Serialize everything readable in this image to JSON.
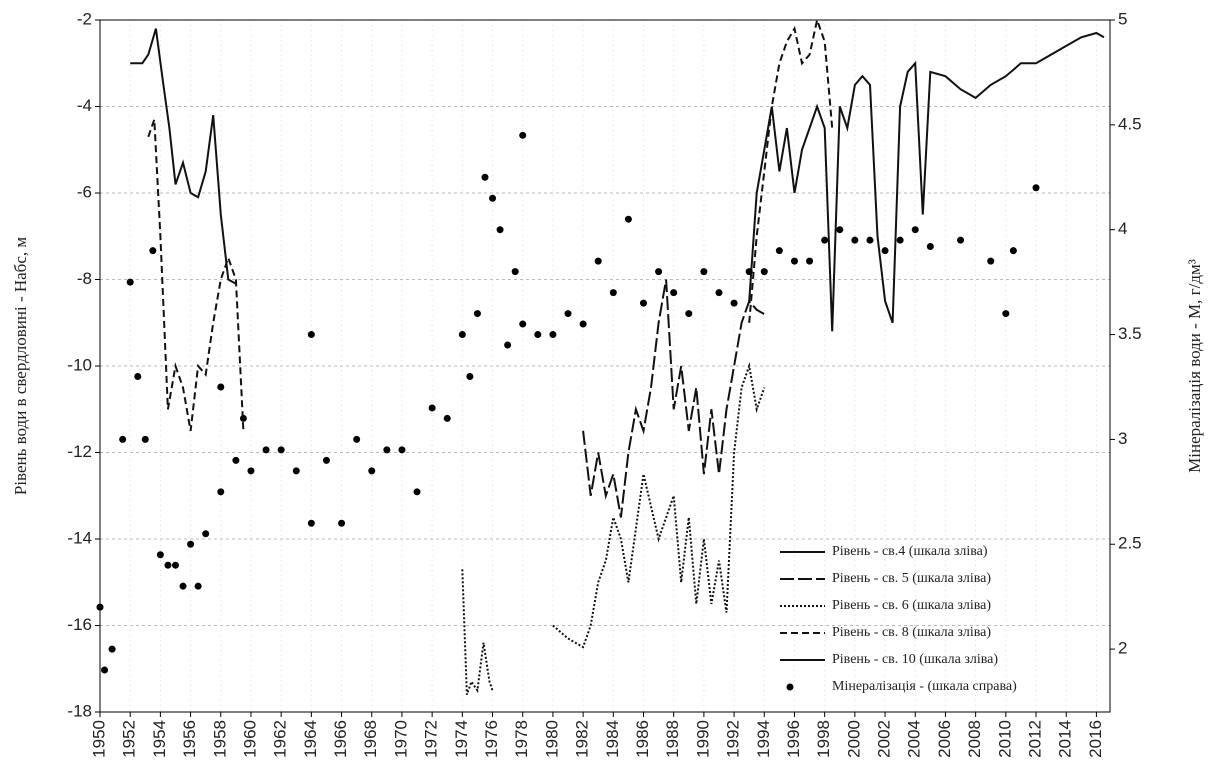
{
  "chart_data": {
    "type": "line",
    "y_label": "Рівень води в свердловині - Набс, м",
    "y2_label": "Мінералізація води - М, г/дм³",
    "xlim": [
      1950,
      2016.9
    ],
    "xticks": [
      1950,
      1952,
      1954,
      1956,
      1958,
      1960,
      1962,
      1964,
      1966,
      1968,
      1970,
      1972,
      1974,
      1976,
      1978,
      1980,
      1982,
      1984,
      1986,
      1988,
      1990,
      1992,
      1994,
      1996,
      1998,
      2000,
      2002,
      2004,
      2006,
      2008,
      2010,
      2012,
      2014,
      2016
    ],
    "ylim": [
      -18,
      -2
    ],
    "yticks": [
      -18,
      -16,
      -14,
      -12,
      -10,
      -8,
      -6,
      -4,
      -2
    ],
    "y2lim": [
      1.7,
      5.0
    ],
    "y2ticks": [
      2.0,
      2.5,
      3.0,
      3.5,
      4.0,
      4.5,
      5.0
    ],
    "grid": true,
    "legend": "lower-right",
    "series": [
      {
        "name": "Рівень - св.4 (шкала зліва)",
        "kind": "line",
        "style": "solid",
        "color": "#111111",
        "x": [
          1952,
          1952.8,
          1953.2,
          1953.7,
          1954.2,
          1954.6,
          1955,
          1955.5,
          1956,
          1956.5,
          1957,
          1957.5,
          1958,
          1958.5,
          1959
        ],
        "values": [
          -3,
          -3,
          -2.8,
          -2.2,
          -3.5,
          -4.5,
          -5.8,
          -5.3,
          -6,
          -6.1,
          -5.5,
          -4.2,
          -6.5,
          -8,
          -8.1
        ]
      },
      {
        "name": "Рівень - св. 5 (шкала зліва)",
        "kind": "line",
        "style": "long-dash",
        "color": "#111111",
        "x": [
          1982,
          1982.5,
          1983,
          1983.5,
          1984,
          1984.5,
          1985,
          1985.5,
          1986,
          1986.5,
          1987,
          1987.5,
          1988,
          1988.5,
          1989,
          1989.5,
          1990,
          1990.5,
          1991,
          1991.5,
          1992,
          1992.5,
          1993,
          1993.5,
          1994
        ],
        "values": [
          -11.5,
          -13,
          -12,
          -13,
          -12.5,
          -13.5,
          -12,
          -11,
          -11.5,
          -10.5,
          -9,
          -8,
          -11,
          -10,
          -11.5,
          -10.5,
          -12.5,
          -11,
          -12.5,
          -11,
          -10,
          -9,
          -8.5,
          -8.7,
          -8.8
        ]
      },
      {
        "name": "Рівень - св. 6 (шкала зліва)",
        "kind": "line",
        "style": "dotted",
        "color": "#111111",
        "x": [
          1974,
          1974.3,
          1974.6,
          1975,
          1975.4,
          1975.8,
          1976,
          1978,
          1980,
          1981,
          1982,
          1982.5,
          1983,
          1983.5,
          1984,
          1984.5,
          1985,
          1986,
          1987,
          1988,
          1988.5,
          1989,
          1989.5,
          1990,
          1990.5,
          1991,
          1991.5,
          1992,
          1992.5,
          1993,
          1993.5,
          1994
        ],
        "values": [
          -14.7,
          -17.6,
          -17.3,
          -17.5,
          -16.4,
          -17.3,
          -17.5,
          null,
          -16,
          -16.3,
          -16.5,
          -16,
          -15,
          -14.5,
          -13.5,
          -14,
          -15,
          -12.5,
          -14,
          -13,
          -15,
          -13.5,
          -15.5,
          -14,
          -15.5,
          -14.5,
          -15.7,
          -12,
          -10.5,
          -10,
          -11,
          -10.5
        ]
      },
      {
        "name": "Рівень - св. 8 (шкала зліва)",
        "kind": "line",
        "style": "dashed",
        "color": "#111111",
        "x": [
          1953.2,
          1953.6,
          1954,
          1954.5,
          1955,
          1955.5,
          1956,
          1956.5,
          1957,
          1957.5,
          1958,
          1958.5,
          1959,
          1959.5,
          1975,
          1993,
          1993.5,
          1994,
          1994.5,
          1995,
          1995.5,
          1996,
          1996.5,
          1997,
          1997.5,
          1998,
          1998.5
        ],
        "values": [
          -4.7,
          -4.3,
          -7,
          -11,
          -10,
          -10.5,
          -11.5,
          -10,
          -10.2,
          -9,
          -8,
          -7.5,
          -8,
          -11.5,
          null,
          -9,
          -7,
          -5.5,
          -4,
          -3,
          -2.5,
          -2.2,
          -3,
          -2.8,
          -2,
          -2.5,
          -4.5
        ]
      },
      {
        "name": "Рівень - св. 10 (шкала зліва)",
        "kind": "line",
        "style": "solid",
        "color": "#111111",
        "x": [
          1993,
          1993.5,
          1994,
          1994.5,
          1995,
          1995.5,
          1996,
          1996.5,
          1997,
          1997.5,
          1998,
          1998.5,
          1999,
          1999.5,
          2000,
          2000.5,
          2001,
          2001.5,
          2002,
          2002.5,
          2003,
          2003.5,
          2004,
          2004.5,
          2005,
          2006,
          2007,
          2008,
          2009,
          2010,
          2011,
          2012,
          2013,
          2014,
          2015,
          2016,
          2016.5
        ],
        "values": [
          -8.5,
          -6,
          -5,
          -4,
          -5.5,
          -4.5,
          -6,
          -5,
          -4.5,
          -4,
          -4.5,
          -9.2,
          -4,
          -4.5,
          -3.5,
          -3.3,
          -3.5,
          -7,
          -8.5,
          -9,
          -4,
          -3.2,
          -3,
          -6.5,
          -3.2,
          -3.3,
          -3.6,
          -3.8,
          -3.5,
          -3.3,
          -3,
          -3,
          -2.8,
          -2.6,
          -2.4,
          -2.3,
          -2.4
        ]
      },
      {
        "name": "Мінералізація -  (шкала справа)",
        "kind": "scatter",
        "axis": "y2",
        "color": "#000000",
        "x": [
          1950,
          1950.3,
          1950.8,
          1951.5,
          1952,
          1952.5,
          1953,
          1953.5,
          1954,
          1954.5,
          1955,
          1955.5,
          1956,
          1956.5,
          1957,
          1958,
          1958,
          1959,
          1959.5,
          1960,
          1961,
          1962,
          1963,
          1964,
          1964,
          1965,
          1966,
          1967,
          1968,
          1969,
          1970,
          1971,
          1972,
          1973,
          1974,
          1974.5,
          1975,
          1975.5,
          1976,
          1976.5,
          1977,
          1977.5,
          1978,
          1978,
          1979,
          1980,
          1981,
          1982,
          1983,
          1984,
          1985,
          1986,
          1987,
          1988,
          1989,
          1990,
          1991,
          1992,
          1993,
          1994,
          1995,
          1996,
          1997,
          1998,
          1999,
          2000,
          2001,
          2002,
          2003,
          2004,
          2005,
          2007,
          2009,
          2010,
          2010.5,
          2012
        ],
        "values": [
          2.2,
          1.9,
          2.0,
          3.0,
          3.75,
          3.3,
          3.0,
          3.9,
          2.45,
          2.4,
          2.4,
          2.3,
          2.5,
          2.3,
          2.55,
          2.75,
          3.25,
          2.9,
          3.1,
          2.85,
          2.95,
          2.95,
          2.85,
          3.5,
          2.6,
          2.9,
          2.6,
          3.0,
          2.85,
          2.95,
          2.95,
          2.75,
          3.15,
          3.1,
          3.5,
          3.3,
          3.6,
          4.25,
          4.15,
          4.0,
          3.45,
          3.8,
          4.45,
          3.55,
          3.5,
          3.5,
          3.6,
          3.55,
          3.85,
          3.7,
          4.05,
          3.65,
          3.8,
          3.7,
          3.6,
          3.8,
          3.7,
          3.65,
          3.8,
          3.8,
          3.9,
          3.85,
          3.85,
          3.95,
          4.0,
          3.95,
          3.95,
          3.9,
          3.95,
          4.0,
          3.92,
          3.95,
          3.85,
          3.6,
          3.9,
          4.2
        ]
      }
    ]
  }
}
